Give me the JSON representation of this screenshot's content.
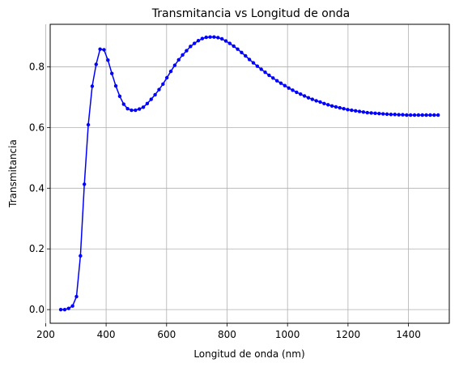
{
  "chart_data": {
    "type": "line",
    "title": "Transmitancia vs Longitud de onda",
    "xlabel": "Longitud de onda (nm)",
    "ylabel": "Transmitancia",
    "xlim": [
      215,
      1535
    ],
    "ylim": [
      -0.045,
      0.94
    ],
    "xticks": [
      200,
      400,
      600,
      800,
      1000,
      1200,
      1400
    ],
    "yticks": [
      0.0,
      0.2,
      0.4,
      0.6,
      0.8
    ],
    "ytick_labels": [
      "0.0",
      "0.2",
      "0.4",
      "0.6",
      "0.8"
    ],
    "grid": true,
    "series_color": "#0000ff",
    "marker": "circle",
    "x": [
      250,
      263,
      276,
      289,
      302,
      315,
      328,
      341,
      354,
      367,
      380,
      393,
      406,
      419,
      432,
      445,
      458,
      471,
      484,
      497,
      510,
      523,
      536,
      549,
      562,
      575,
      588,
      601,
      614,
      627,
      640,
      653,
      666,
      679,
      692,
      705,
      718,
      731,
      744,
      757,
      770,
      783,
      796,
      809,
      822,
      835,
      848,
      861,
      874,
      887,
      900,
      913,
      926,
      939,
      952,
      965,
      978,
      991,
      1004,
      1017,
      1030,
      1043,
      1056,
      1069,
      1082,
      1095,
      1108,
      1121,
      1134,
      1147,
      1160,
      1173,
      1186,
      1199,
      1212,
      1225,
      1238,
      1251,
      1264,
      1277,
      1290,
      1303,
      1316,
      1329,
      1342,
      1355,
      1368,
      1381,
      1394,
      1407,
      1420,
      1433,
      1446,
      1459,
      1472,
      1485,
      1498
    ],
    "y": [
      0.0,
      0.0,
      0.004,
      0.012,
      0.043,
      0.177,
      0.413,
      0.609,
      0.736,
      0.808,
      0.858,
      0.856,
      0.822,
      0.778,
      0.737,
      0.703,
      0.677,
      0.662,
      0.657,
      0.657,
      0.661,
      0.667,
      0.679,
      0.693,
      0.708,
      0.725,
      0.743,
      0.764,
      0.785,
      0.805,
      0.823,
      0.839,
      0.853,
      0.867,
      0.877,
      0.886,
      0.893,
      0.897,
      0.898,
      0.898,
      0.896,
      0.892,
      0.885,
      0.877,
      0.868,
      0.858,
      0.847,
      0.836,
      0.824,
      0.813,
      0.802,
      0.792,
      0.782,
      0.772,
      0.763,
      0.754,
      0.746,
      0.738,
      0.73,
      0.723,
      0.716,
      0.71,
      0.704,
      0.698,
      0.693,
      0.688,
      0.684,
      0.679,
      0.675,
      0.671,
      0.668,
      0.665,
      0.662,
      0.659,
      0.657,
      0.655,
      0.653,
      0.651,
      0.649,
      0.648,
      0.647,
      0.646,
      0.645,
      0.644,
      0.643,
      0.643,
      0.642,
      0.642,
      0.641,
      0.641,
      0.641,
      0.641,
      0.641,
      0.641,
      0.641,
      0.641,
      0.641
    ]
  }
}
